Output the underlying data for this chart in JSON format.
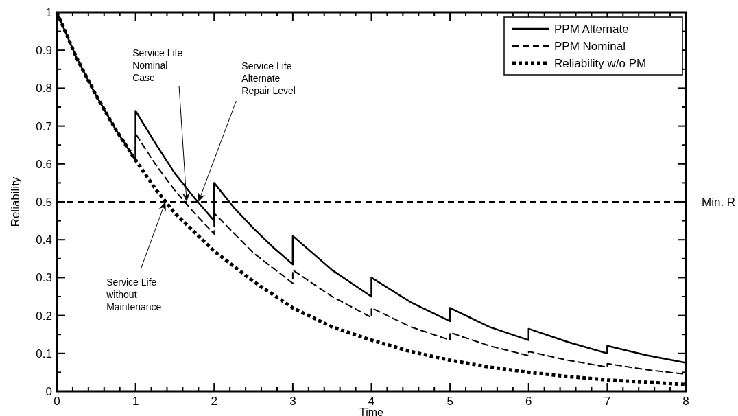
{
  "chart_data": {
    "type": "line",
    "xlabel": "Time",
    "ylabel": "Reliability",
    "xlim": [
      0,
      8
    ],
    "ylim": [
      0,
      1
    ],
    "xticks": [
      0,
      {
        "value": 0.2,
        "label": null
      },
      {
        "value": 0.4,
        "label": null
      },
      {
        "value": 0.6,
        "label": null
      },
      {
        "value": 0.8,
        "label": null
      },
      1,
      {
        "value": 1.2,
        "label": null
      },
      {
        "value": 1.4,
        "label": null
      },
      {
        "value": 1.6,
        "label": null
      },
      {
        "value": 1.8,
        "label": null
      },
      2,
      {
        "value": 2.2,
        "label": null
      },
      {
        "value": 2.4,
        "label": null
      },
      {
        "value": 2.6,
        "label": null
      },
      {
        "value": 2.8,
        "label": null
      },
      3,
      {
        "value": 3.2,
        "label": null
      },
      {
        "value": 3.4,
        "label": null
      },
      {
        "value": 3.6,
        "label": null
      },
      {
        "value": 3.8,
        "label": null
      },
      4,
      {
        "value": 4.2,
        "label": null
      },
      {
        "value": 4.4,
        "label": null
      },
      {
        "value": 4.6,
        "label": null
      },
      {
        "value": 4.8,
        "label": null
      },
      5,
      {
        "value": 5.2,
        "label": null
      },
      {
        "value": 5.4,
        "label": null
      },
      {
        "value": 5.6,
        "label": null
      },
      {
        "value": 5.8,
        "label": null
      },
      6,
      {
        "value": 6.2,
        "label": null
      },
      {
        "value": 6.4,
        "label": null
      },
      {
        "value": 6.6,
        "label": null
      },
      {
        "value": 6.8,
        "label": null
      },
      7,
      {
        "value": 7.2,
        "label": null
      },
      {
        "value": 7.4,
        "label": null
      },
      {
        "value": 7.6,
        "label": null
      },
      {
        "value": 7.8,
        "label": null
      },
      8
    ],
    "yticks": [
      0,
      {
        "value": 0.05,
        "label": null
      },
      0.1,
      {
        "value": 0.15,
        "label": null
      },
      0.2,
      {
        "value": 0.25,
        "label": null
      },
      0.3,
      {
        "value": 0.35,
        "label": null
      },
      0.4,
      {
        "value": 0.45,
        "label": null
      },
      0.5,
      {
        "value": 0.55,
        "label": null
      },
      0.6,
      {
        "value": 0.65,
        "label": null
      },
      0.7,
      {
        "value": 0.75,
        "label": null
      },
      0.8,
      {
        "value": 0.85,
        "label": null
      },
      0.9,
      {
        "value": 0.95,
        "label": null
      },
      1
    ],
    "grid": false,
    "legend": "top right",
    "marker": "none",
    "series": [
      {
        "name": "PPM Alternate",
        "color": "#000000",
        "line_style": "solid",
        "x": [
          0,
          0.25,
          0.5,
          0.75,
          1,
          1,
          1.25,
          1.5,
          1.75,
          2,
          2,
          2.25,
          2.5,
          2.75,
          3,
          3,
          3.5,
          4,
          4,
          4.5,
          5,
          5,
          5.5,
          6,
          6,
          6.5,
          7,
          7,
          7.5,
          8
        ],
        "values": [
          1,
          0.88,
          0.78,
          0.69,
          0.61,
          0.74,
          0.655,
          0.575,
          0.51,
          0.45,
          0.55,
          0.485,
          0.43,
          0.38,
          0.335,
          0.41,
          0.32,
          0.25,
          0.3,
          0.235,
          0.185,
          0.22,
          0.17,
          0.135,
          0.165,
          0.13,
          0.1,
          0.12,
          0.095,
          0.075
        ]
      },
      {
        "name": "PPM Nominal",
        "color": "#000000",
        "line_style": "dashed",
        "x": [
          0,
          0.25,
          0.5,
          0.75,
          1,
          1,
          1.25,
          1.5,
          1.75,
          2,
          2,
          2.5,
          3,
          3,
          3.5,
          4,
          4,
          4.5,
          5,
          5,
          5.5,
          6,
          6,
          6.5,
          7,
          7,
          7.5,
          8
        ],
        "values": [
          1,
          0.88,
          0.78,
          0.69,
          0.61,
          0.68,
          0.6,
          0.53,
          0.47,
          0.415,
          0.47,
          0.365,
          0.285,
          0.32,
          0.25,
          0.195,
          0.22,
          0.17,
          0.135,
          0.155,
          0.12,
          0.094,
          0.105,
          0.082,
          0.064,
          0.073,
          0.057,
          0.045
        ]
      },
      {
        "name": "Reliability w/o PM",
        "color": "#000000",
        "line_style": "dotted",
        "x": [
          0,
          0.25,
          0.5,
          0.75,
          1,
          1.25,
          1.5,
          1.75,
          2,
          2.5,
          3,
          3.5,
          4,
          4.5,
          5,
          5.5,
          6,
          6.5,
          7,
          7.5,
          8
        ],
        "values": [
          1,
          0.88,
          0.78,
          0.69,
          0.61,
          0.535,
          0.47,
          0.42,
          0.37,
          0.29,
          0.22,
          0.17,
          0.135,
          0.105,
          0.082,
          0.064,
          0.05,
          0.039,
          0.03,
          0.024,
          0.018
        ]
      }
    ],
    "ref_lines": [
      {
        "axis": "y",
        "value": 0.5,
        "label": "Min. R",
        "color": "#000000",
        "line_style": "dashed"
      }
    ],
    "annotations": [
      {
        "text": "Service Life\nNominal\nCase",
        "x": 1.65,
        "y": 0.5
      },
      {
        "text": "Service Life\nAlternate\nRepair Level",
        "x": 1.8,
        "y": 0.5
      },
      {
        "text": "Service Life\nwithout\nMaintenance",
        "x": 1.38,
        "y": 0.5
      }
    ]
  }
}
